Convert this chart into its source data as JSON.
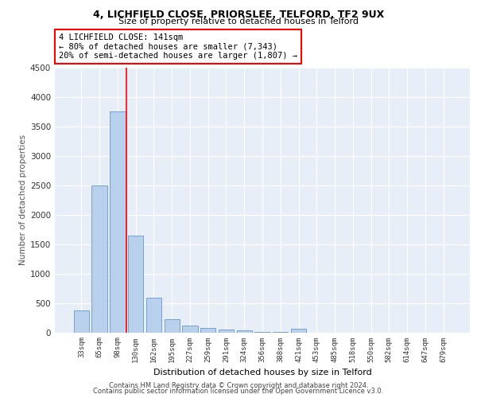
{
  "title1": "4, LICHFIELD CLOSE, PRIORSLEE, TELFORD, TF2 9UX",
  "title2": "Size of property relative to detached houses in Telford",
  "xlabel": "Distribution of detached houses by size in Telford",
  "ylabel": "Number of detached properties",
  "categories": [
    "33sqm",
    "65sqm",
    "98sqm",
    "130sqm",
    "162sqm",
    "195sqm",
    "227sqm",
    "259sqm",
    "291sqm",
    "324sqm",
    "356sqm",
    "388sqm",
    "421sqm",
    "453sqm",
    "485sqm",
    "518sqm",
    "550sqm",
    "582sqm",
    "614sqm",
    "647sqm",
    "679sqm"
  ],
  "values": [
    370,
    2500,
    3750,
    1640,
    590,
    230,
    110,
    70,
    45,
    30,
    10,
    5,
    55,
    0,
    0,
    0,
    0,
    0,
    0,
    0,
    0
  ],
  "bar_color": "#b8d0eb",
  "bar_edge_color": "#6699cc",
  "red_line_x": 2.5,
  "property_line_label": "4 LICHFIELD CLOSE: 141sqm",
  "annotation_line1": "← 80% of detached houses are smaller (7,343)",
  "annotation_line2": "20% of semi-detached houses are larger (1,807) →",
  "ylim": [
    0,
    4500
  ],
  "yticks": [
    0,
    500,
    1000,
    1500,
    2000,
    2500,
    3000,
    3500,
    4000,
    4500
  ],
  "bg_color": "#e8eef8",
  "grid_color": "#ffffff",
  "footer1": "Contains HM Land Registry data © Crown copyright and database right 2024.",
  "footer2": "Contains public sector information licensed under the Open Government Licence v3.0."
}
